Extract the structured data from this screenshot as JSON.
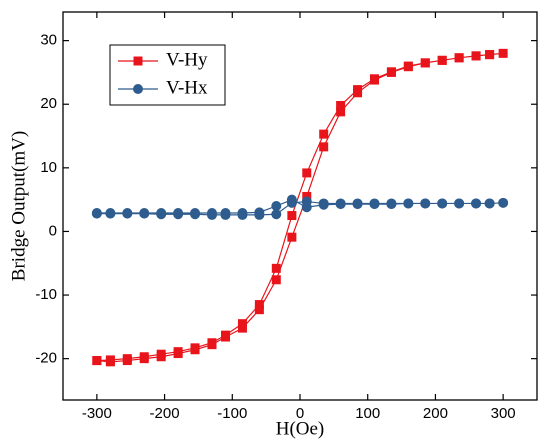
{
  "chart_data": {
    "type": "line",
    "xlabel": "H(Oe)",
    "ylabel": "Bridge Output(mV)",
    "xlim": [
      -350,
      350
    ],
    "ylim": [
      -26.5,
      34.5
    ],
    "xticks": [
      -300,
      -200,
      -100,
      0,
      100,
      200,
      300
    ],
    "yticks": [
      -20,
      -10,
      0,
      10,
      20,
      30
    ],
    "legend": "upper left",
    "series": [
      {
        "name": "V-Hy",
        "color": "#e8141b",
        "marker": "square",
        "x": [
          -300,
          -280,
          -255,
          -230,
          -205,
          -180,
          -155,
          -130,
          -110,
          -85,
          -60,
          -35,
          -12,
          10,
          35,
          60,
          85,
          110,
          135,
          160,
          185,
          210,
          235,
          260,
          280,
          300,
          280,
          260,
          235,
          210,
          185,
          160,
          135,
          110,
          85,
          60,
          35,
          10,
          -12,
          -35,
          -60,
          -85,
          -110,
          -130,
          -155,
          -180,
          -205,
          -230,
          -255,
          -280,
          -300
        ],
        "values": [
          -20.3,
          -20.5,
          -20.3,
          -20.0,
          -19.7,
          -19.2,
          -18.6,
          -17.8,
          -16.6,
          -15.2,
          -12.3,
          -7.6,
          -0.9,
          5.5,
          13.3,
          18.8,
          21.8,
          23.8,
          25.0,
          25.9,
          26.5,
          26.9,
          27.3,
          27.6,
          27.8,
          28.0,
          27.8,
          27.6,
          27.3,
          26.9,
          26.5,
          26.0,
          25.1,
          24.0,
          22.3,
          19.8,
          15.3,
          9.2,
          2.5,
          -5.8,
          -11.5,
          -14.5,
          -16.3,
          -17.5,
          -18.3,
          -18.9,
          -19.3,
          -19.7,
          -20.0,
          -20.2,
          -20.3
        ]
      },
      {
        "name": "V-Hx",
        "color": "#2e5c8e",
        "marker": "circle",
        "x": [
          -300,
          -280,
          -255,
          -230,
          -205,
          -180,
          -155,
          -130,
          -110,
          -85,
          -60,
          -35,
          -12,
          10,
          35,
          60,
          85,
          110,
          135,
          160,
          185,
          210,
          235,
          260,
          280,
          300,
          280,
          260,
          235,
          210,
          185,
          160,
          135,
          110,
          85,
          60,
          35,
          10,
          -12,
          -35,
          -60,
          -85,
          -110,
          -130,
          -155,
          -180,
          -205,
          -230,
          -255,
          -280,
          -300
        ],
        "values": [
          2.8,
          2.8,
          2.8,
          2.8,
          2.7,
          2.7,
          2.7,
          2.6,
          2.6,
          2.6,
          2.6,
          2.7,
          4.5,
          4.7,
          4.4,
          4.4,
          4.4,
          4.4,
          4.4,
          4.4,
          4.4,
          4.4,
          4.4,
          4.4,
          4.4,
          4.5,
          4.4,
          4.4,
          4.4,
          4.4,
          4.4,
          4.4,
          4.3,
          4.3,
          4.3,
          4.3,
          4.2,
          3.8,
          5.0,
          4.0,
          3.0,
          2.9,
          2.9,
          2.9,
          2.9,
          2.9,
          2.9,
          2.9,
          2.9,
          2.9,
          2.9
        ]
      }
    ]
  }
}
